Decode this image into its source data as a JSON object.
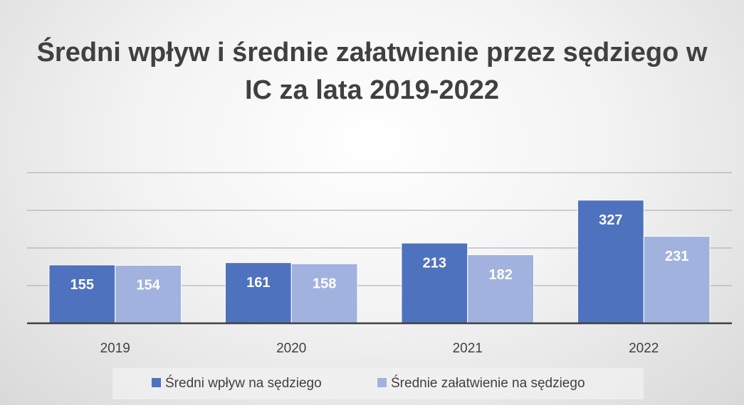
{
  "chart_data": {
    "type": "bar",
    "title": "Średni wpływ i średnie załatwienie przez sędziego w IC za lata 2019-2022",
    "categories": [
      "2019",
      "2020",
      "2021",
      "2022"
    ],
    "series": [
      {
        "name": "Średni wpływ na sędziego",
        "color": "#4e72be",
        "values": [
          155,
          161,
          213,
          327
        ]
      },
      {
        "name": "Średnie załatwienie na sędziego",
        "color": "#a1b2df",
        "values": [
          154,
          158,
          182,
          231
        ]
      }
    ],
    "ylim": [
      0,
      400
    ],
    "yticks": [
      0,
      100,
      200,
      300,
      400
    ],
    "grid": true,
    "legend": "bottom"
  }
}
